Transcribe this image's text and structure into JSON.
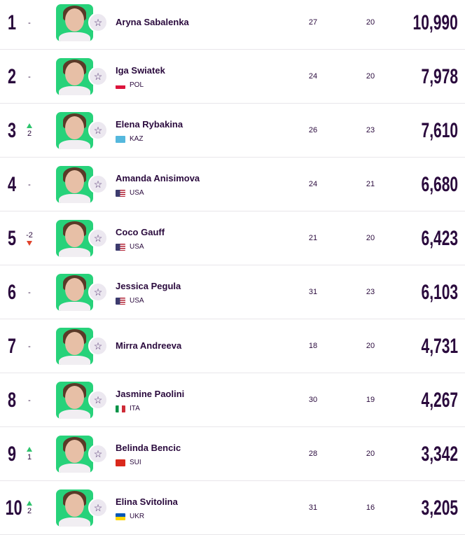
{
  "colors": {
    "text": "#2a0a3d",
    "photo_bg": "#27d27a",
    "up": "#2ec46d",
    "down": "#e0442d"
  },
  "players": [
    {
      "rank": "1",
      "move": "-",
      "dir": "none",
      "name": "Aryna Sabalenka",
      "country": "",
      "flag": "",
      "age": "27",
      "tournaments": "20",
      "points": "10,990"
    },
    {
      "rank": "2",
      "move": "-",
      "dir": "none",
      "name": "Iga Swiatek",
      "country": "POL",
      "flag": "linear-gradient(#fff 50%,#dc143c 50%)",
      "age": "24",
      "tournaments": "20",
      "points": "7,978"
    },
    {
      "rank": "3",
      "move": "2",
      "dir": "up",
      "name": "Elena Rybakina",
      "country": "KAZ",
      "flag": "#55b8dd",
      "age": "26",
      "tournaments": "23",
      "points": "7,610"
    },
    {
      "rank": "4",
      "move": "-",
      "dir": "none",
      "name": "Amanda Anisimova",
      "country": "USA",
      "flag": "linear-gradient(to right,#3c3b6e 45%,transparent 45%),repeating-linear-gradient(#b22234 0 1.5px,#fff 1.5px 3px)",
      "age": "24",
      "tournaments": "21",
      "points": "6,680"
    },
    {
      "rank": "5",
      "move": "-2",
      "dir": "down",
      "name": "Coco Gauff",
      "country": "USA",
      "flag": "linear-gradient(to right,#3c3b6e 45%,transparent 45%),repeating-linear-gradient(#b22234 0 1.5px,#fff 1.5px 3px)",
      "age": "21",
      "tournaments": "20",
      "points": "6,423"
    },
    {
      "rank": "6",
      "move": "-",
      "dir": "none",
      "name": "Jessica Pegula",
      "country": "USA",
      "flag": "linear-gradient(to right,#3c3b6e 45%,transparent 45%),repeating-linear-gradient(#b22234 0 1.5px,#fff 1.5px 3px)",
      "age": "31",
      "tournaments": "23",
      "points": "6,103"
    },
    {
      "rank": "7",
      "move": "-",
      "dir": "none",
      "name": "Mirra Andreeva",
      "country": "",
      "flag": "",
      "age": "18",
      "tournaments": "20",
      "points": "4,731"
    },
    {
      "rank": "8",
      "move": "-",
      "dir": "none",
      "name": "Jasmine Paolini",
      "country": "ITA",
      "flag": "linear-gradient(to right,#009246 33%,#fff 33% 66%,#ce2b37 66%)",
      "age": "30",
      "tournaments": "19",
      "points": "4,267"
    },
    {
      "rank": "9",
      "move": "1",
      "dir": "up",
      "name": "Belinda Bencic",
      "country": "SUI",
      "flag": "#da291c",
      "age": "28",
      "tournaments": "20",
      "points": "3,342"
    },
    {
      "rank": "10",
      "move": "2",
      "dir": "up",
      "name": "Elina Svitolina",
      "country": "UKR",
      "flag": "linear-gradient(#0057b7 50%,#ffd700 50%)",
      "age": "31",
      "tournaments": "16",
      "points": "3,205"
    }
  ]
}
